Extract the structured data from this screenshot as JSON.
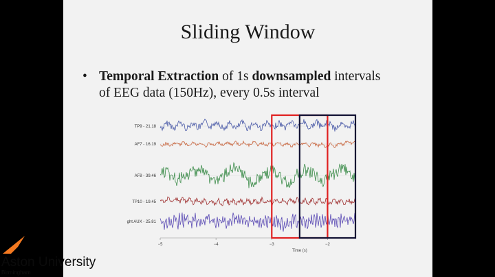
{
  "slide": {
    "title": "Sliding Window",
    "bullet": {
      "marker": "•",
      "bold1": "Temporal Extraction",
      "text1": " of 1s ",
      "bold2": "downsampled",
      "text2": " intervals",
      "line2": "of EEG data (150Hz), every 0.5s interval"
    }
  },
  "logo": {
    "name": "Aston University",
    "sub": "Birmingham",
    "icon": "aston-flag-icon",
    "color": "#f47920"
  },
  "chart_data": {
    "type": "line",
    "x_ticks": [
      "−5",
      "−4",
      "−3",
      "−2"
    ],
    "xlabel": "Time (s)",
    "xlim": [
      -5,
      -1.5
    ],
    "channels": [
      {
        "label": "TP9 - 21.18",
        "color": "#4a5aa8"
      },
      {
        "label": "AF7 - 16.19",
        "color": "#c8643c"
      },
      {
        "label": "AF8 - 39.46",
        "color": "#3c8c4a"
      },
      {
        "label": "TP10 - 19.45",
        "color": "#a03030"
      },
      {
        "label": "ght AUX - 25.81",
        "color": "#5a4ab4"
      }
    ],
    "windows": [
      {
        "name": "red",
        "start": -3,
        "end": -2,
        "color": "#e02020"
      },
      {
        "name": "black",
        "start": -2.5,
        "end": -1.5,
        "color": "#111133"
      }
    ]
  }
}
